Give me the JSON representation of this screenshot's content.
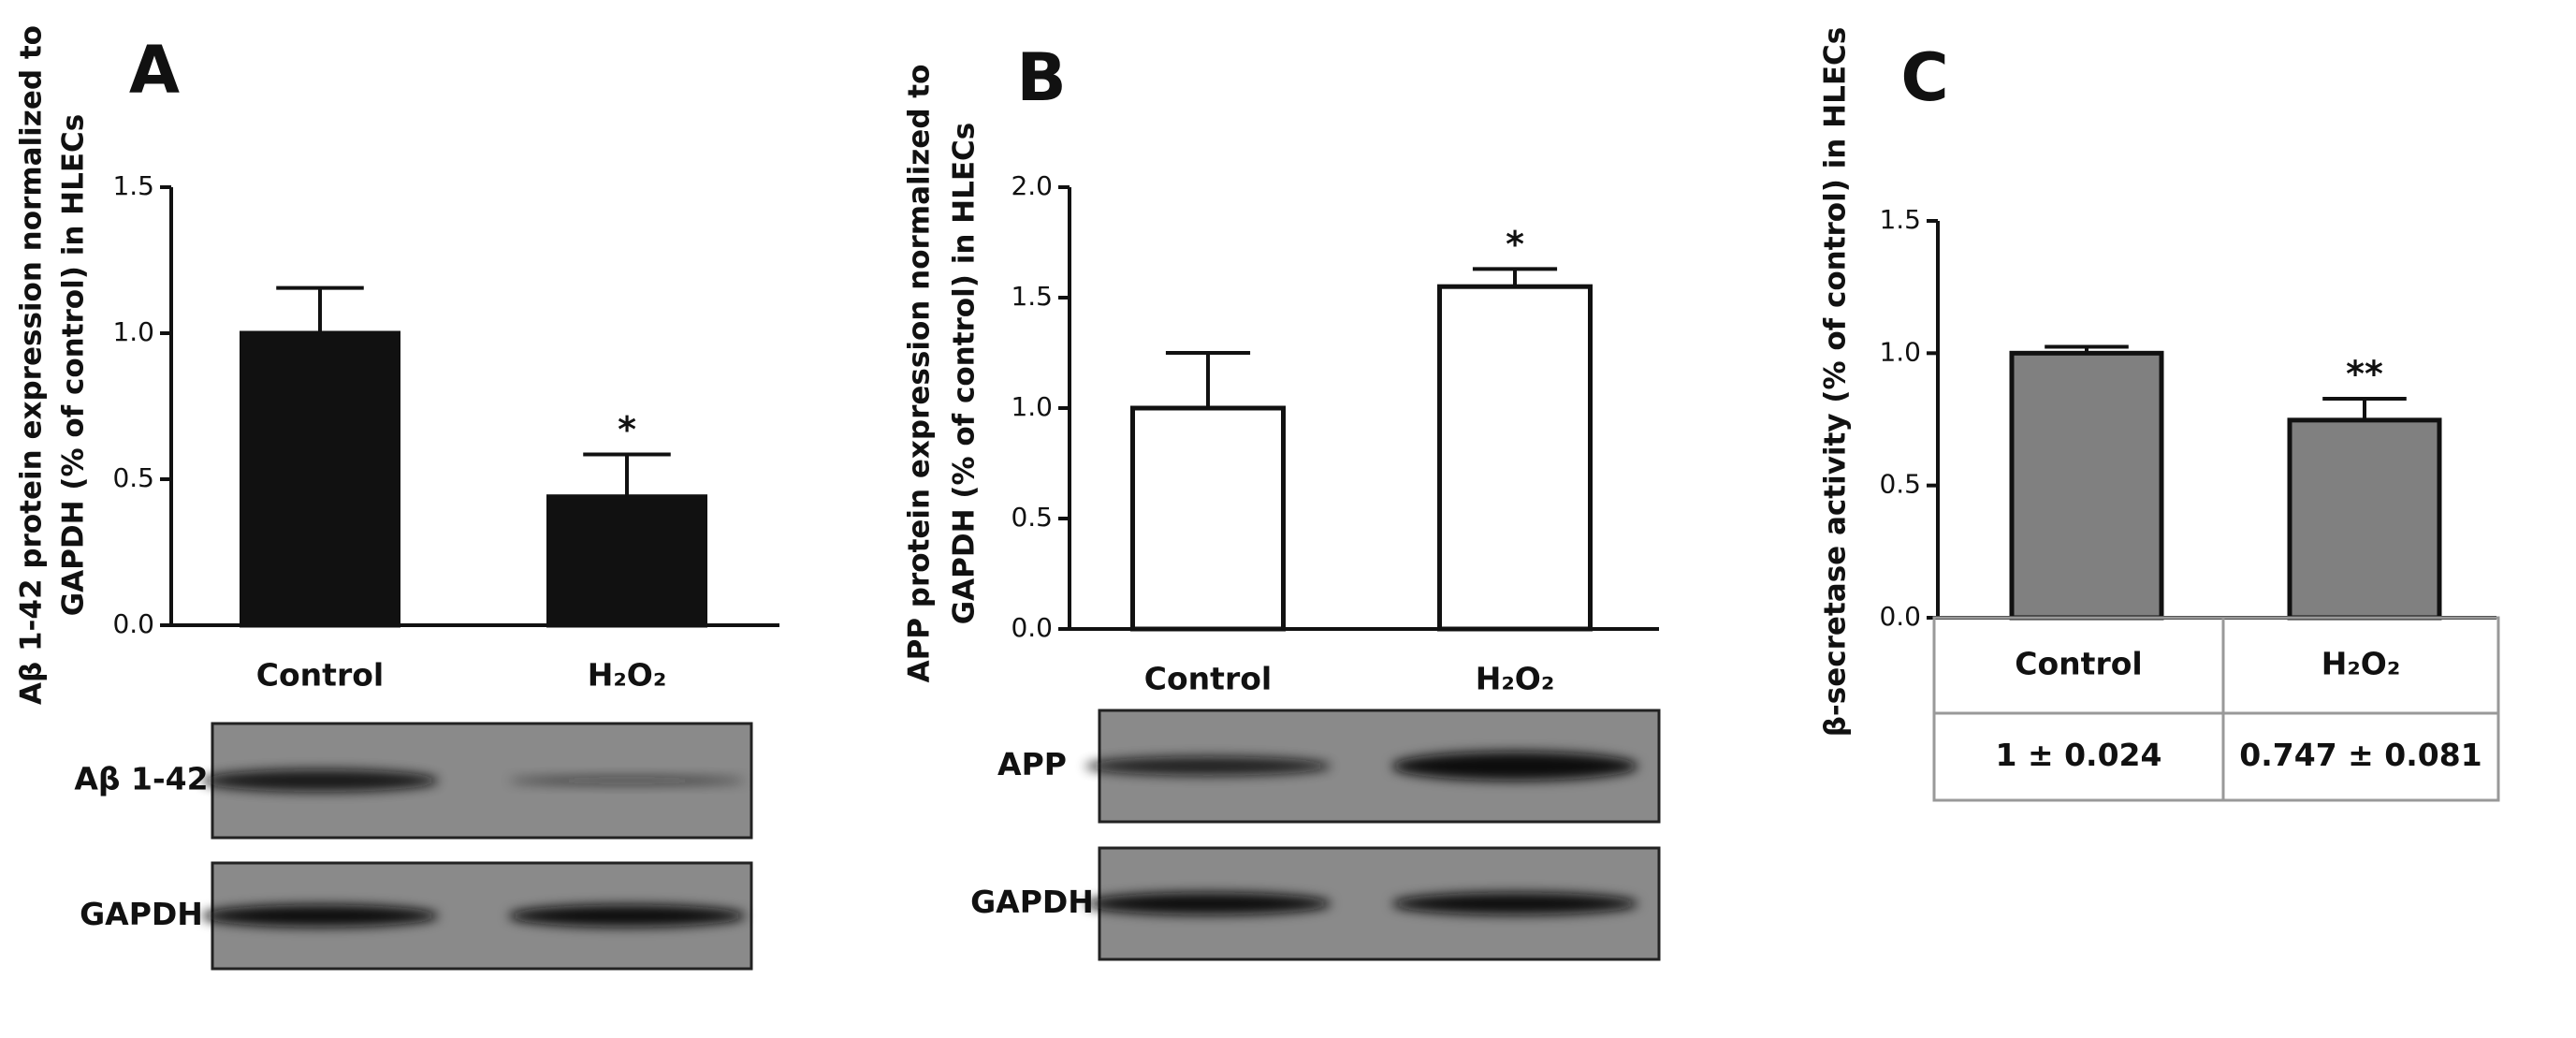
{
  "chart_data": [
    {
      "type": "bar",
      "panel": "A",
      "ylabel": [
        "Aβ 1-42 protein expression normalized to",
        "GAPDH (% of control) in HLECs"
      ],
      "categories": [
        "Control",
        "H₂O₂"
      ],
      "values": [
        1.0,
        0.44
      ],
      "errors": [
        0.155,
        0.145
      ],
      "significance": [
        null,
        "*"
      ],
      "color": "#111111",
      "ylim": [
        0,
        1.5
      ],
      "yticks": [
        {
          "value": 0,
          "label": "0.0"
        },
        {
          "value": 0.5,
          "label": "0.5"
        },
        {
          "value": 1,
          "label": "1.0"
        },
        {
          "value": 1.5,
          "label": "1.5"
        }
      ],
      "blot_labels": [
        "Aβ 1-42",
        "GAPDH"
      ]
    },
    {
      "type": "bar",
      "panel": "B",
      "ylabel": [
        "APP protein expression normalized to",
        "GAPDH (% of control) in HLECs"
      ],
      "categories": [
        "Control",
        "H₂O₂"
      ],
      "values": [
        1.0,
        1.55
      ],
      "errors": [
        0.25,
        0.08
      ],
      "significance": [
        null,
        "*"
      ],
      "color": "#ffffff",
      "ylim": [
        0,
        2
      ],
      "yticks": [
        {
          "value": 0,
          "label": "0.0"
        },
        {
          "value": 0.5,
          "label": "0.5"
        },
        {
          "value": 1,
          "label": "1.0"
        },
        {
          "value": 1.5,
          "label": "1.5"
        },
        {
          "value": 2,
          "label": "2.0"
        }
      ],
      "blot_labels": [
        "APP",
        "GAPDH"
      ]
    },
    {
      "type": "bar",
      "panel": "C",
      "ylabel": [
        "β-secretase activity (% of control) in HLECs"
      ],
      "categories": [
        "Control",
        "H₂O₂"
      ],
      "values": [
        1.0,
        0.747
      ],
      "errors": [
        0.024,
        0.081
      ],
      "significance": [
        null,
        "**"
      ],
      "color": "#808080",
      "ylim": [
        0,
        1.5
      ],
      "yticks": [
        {
          "value": 0,
          "label": "0.0"
        },
        {
          "value": 0.5,
          "label": "0.5"
        },
        {
          "value": 1,
          "label": "1.0"
        },
        {
          "value": 1.5,
          "label": "1.5"
        }
      ],
      "table": {
        "rows": [
          [
            "1 ± 0.024",
            "0.747 ± 0.081"
          ]
        ]
      }
    }
  ]
}
